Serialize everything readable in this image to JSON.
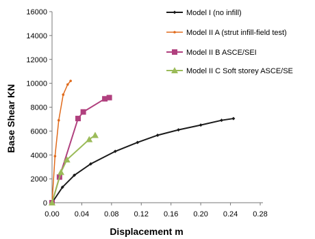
{
  "chart_data": {
    "type": "line",
    "title": "",
    "xlabel": "Displacement m",
    "ylabel": "Base Shear  KN",
    "xlim": [
      0,
      0.28
    ],
    "ylim": [
      0,
      16000
    ],
    "xticks": [
      "0.00",
      "0.04",
      "0.08",
      "0.12",
      "0.16",
      "0.20",
      "0.24",
      "0.28"
    ],
    "yticks": [
      "0",
      "2000",
      "4000",
      "6000",
      "8000",
      "10000",
      "12000",
      "14000",
      "16000"
    ],
    "grid": false,
    "legend_position": "top-right",
    "series": [
      {
        "name": "Model I (no infill)",
        "color": "#1a1a1a",
        "marker": "diamond",
        "x": [
          0.0,
          0.014,
          0.03,
          0.052,
          0.085,
          0.115,
          0.142,
          0.17,
          0.2,
          0.228,
          0.244
        ],
        "y": [
          0,
          1300,
          2300,
          3250,
          4300,
          5050,
          5650,
          6100,
          6500,
          6900,
          7050
        ]
      },
      {
        "name": "Model II A (strut infill-field test)",
        "color": "#e06a1b",
        "marker": "dot",
        "x": [
          0.0,
          0.004,
          0.009,
          0.015,
          0.021,
          0.025
        ],
        "y": [
          0,
          3900,
          6900,
          9050,
          9900,
          10200
        ]
      },
      {
        "name": "Model II B  ASCE/SEI",
        "color": "#b0407e",
        "marker": "square",
        "x": [
          0.0,
          0.01,
          0.035,
          0.042,
          0.071,
          0.077
        ],
        "y": [
          0,
          2150,
          7050,
          7600,
          8700,
          8800
        ]
      },
      {
        "name": "Model II C Soft storey ASCE/SE",
        "color": "#9bbb59",
        "marker": "triangle",
        "x": [
          0.0,
          0.012,
          0.02,
          0.05,
          0.058
        ],
        "y": [
          0,
          2550,
          3600,
          5300,
          5650
        ]
      }
    ]
  }
}
